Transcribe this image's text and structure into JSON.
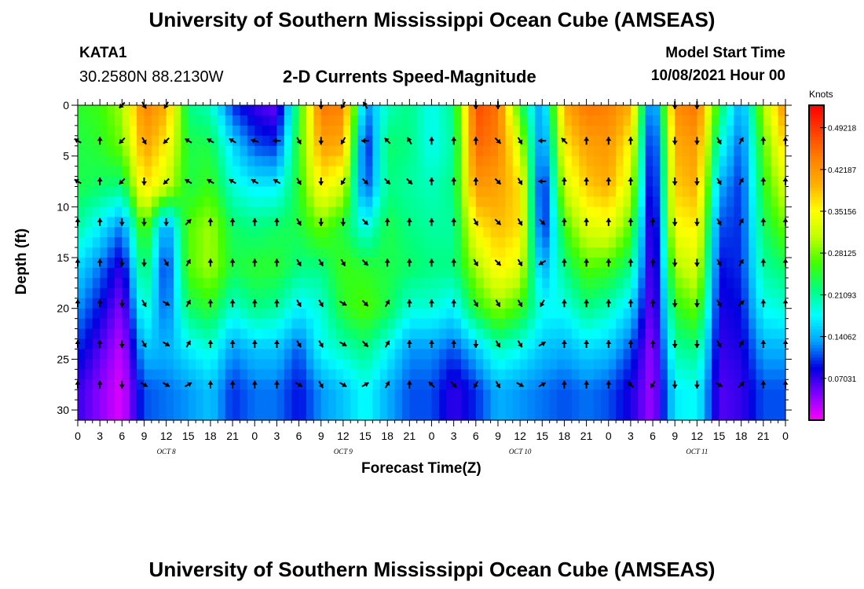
{
  "header": {
    "title_top": "University of Southern Mississippi Ocean Cube (AMSEAS)",
    "title_bottom": "University of Southern Mississippi Ocean Cube (AMSEAS)",
    "station": "KATA1",
    "coords": "30.2580N  88.2130W",
    "subtitle": "2-D Currents Speed-Magnitude",
    "model_label": "Model Start Time",
    "model_time": "10/08/2021 Hour 00"
  },
  "chart_data": {
    "type": "heatmap",
    "title": "2-D Currents Speed-Magnitude",
    "xlabel": "Forecast Time(Z)",
    "ylabel": "Depth (ft)",
    "xlim": [
      0,
      96
    ],
    "ylim": [
      31,
      0
    ],
    "x_tick_labels": [
      "0",
      "3",
      "6",
      "9",
      "12",
      "15",
      "18",
      "21",
      "0",
      "3",
      "6",
      "9",
      "12",
      "15",
      "18",
      "21",
      "0",
      "3",
      "6",
      "9",
      "12",
      "15",
      "18",
      "21",
      "0",
      "3",
      "6",
      "9",
      "12",
      "15",
      "18",
      "21",
      "0"
    ],
    "y_ticks": [
      0,
      5,
      10,
      15,
      20,
      25,
      30
    ],
    "day_labels": [
      {
        "label": "OCT 8",
        "hour": 12
      },
      {
        "label": "OCT 9",
        "hour": 36
      },
      {
        "label": "OCT 10",
        "hour": 60
      },
      {
        "label": "OCT 11",
        "hour": 84
      }
    ],
    "colorbar": {
      "units": "Knots",
      "min": 0.0,
      "max": 0.53,
      "tick_values": [
        0.07031,
        0.14062,
        0.21093,
        0.28125,
        0.35156,
        0.42187,
        0.49218
      ],
      "tick_labels": [
        "0.07031",
        "0.14062",
        "0.21093",
        "0.28125",
        "0.35156",
        "0.42187",
        "0.49218"
      ],
      "colors": [
        "#ff00ff",
        "#8000ff",
        "#0000e0",
        "#00a0ff",
        "#00ffff",
        "#00ff80",
        "#40ff00",
        "#c0ff00",
        "#ffff00",
        "#ffb000",
        "#ff8000",
        "#ff4000",
        "#ff0000"
      ]
    },
    "speed_profiles": [
      {
        "hour": 0,
        "values": [
          0.25,
          0.24,
          0.24,
          0.21,
          0.16,
          0.13,
          0.1,
          0.07
        ]
      },
      {
        "hour": 3,
        "values": [
          0.26,
          0.25,
          0.23,
          0.17,
          0.12,
          0.09,
          0.06,
          0.04
        ]
      },
      {
        "hour": 6,
        "values": [
          0.3,
          0.28,
          0.22,
          0.12,
          0.07,
          0.04,
          0.02,
          0.01
        ]
      },
      {
        "hour": 9,
        "values": [
          0.44,
          0.41,
          0.37,
          0.28,
          0.24,
          0.2,
          0.15,
          0.11
        ]
      },
      {
        "hour": 12,
        "values": [
          0.4,
          0.36,
          0.32,
          0.12,
          0.09,
          0.11,
          0.14,
          0.12
        ]
      },
      {
        "hour": 15,
        "values": [
          0.22,
          0.24,
          0.24,
          0.27,
          0.27,
          0.23,
          0.17,
          0.13
        ]
      },
      {
        "hour": 18,
        "values": [
          0.2,
          0.24,
          0.26,
          0.3,
          0.3,
          0.25,
          0.19,
          0.15
        ]
      },
      {
        "hour": 21,
        "values": [
          0.1,
          0.16,
          0.19,
          0.23,
          0.24,
          0.19,
          0.13,
          0.1
        ]
      },
      {
        "hour": 24,
        "values": [
          0.07,
          0.11,
          0.17,
          0.22,
          0.25,
          0.22,
          0.15,
          0.12
        ]
      },
      {
        "hour": 27,
        "values": [
          0.05,
          0.1,
          0.17,
          0.23,
          0.25,
          0.21,
          0.15,
          0.12
        ]
      },
      {
        "hour": 30,
        "values": [
          0.25,
          0.26,
          0.25,
          0.24,
          0.22,
          0.17,
          0.11,
          0.09
        ]
      },
      {
        "hour": 33,
        "values": [
          0.45,
          0.41,
          0.36,
          0.28,
          0.22,
          0.19,
          0.18,
          0.13
        ]
      },
      {
        "hour": 36,
        "values": [
          0.44,
          0.4,
          0.32,
          0.24,
          0.26,
          0.25,
          0.2,
          0.15
        ]
      },
      {
        "hour": 39,
        "values": [
          0.12,
          0.08,
          0.1,
          0.18,
          0.25,
          0.27,
          0.22,
          0.18
        ]
      },
      {
        "hour": 42,
        "values": [
          0.2,
          0.23,
          0.22,
          0.24,
          0.24,
          0.24,
          0.18,
          0.14
        ]
      },
      {
        "hour": 45,
        "values": [
          0.22,
          0.22,
          0.21,
          0.22,
          0.23,
          0.19,
          0.13,
          0.11
        ]
      },
      {
        "hour": 48,
        "values": [
          0.18,
          0.18,
          0.2,
          0.21,
          0.22,
          0.19,
          0.13,
          0.11
        ]
      },
      {
        "hour": 51,
        "values": [
          0.22,
          0.21,
          0.22,
          0.21,
          0.22,
          0.17,
          0.11,
          0.07
        ]
      },
      {
        "hour": 54,
        "values": [
          0.48,
          0.46,
          0.42,
          0.36,
          0.3,
          0.25,
          0.15,
          0.1
        ]
      },
      {
        "hour": 57,
        "values": [
          0.45,
          0.44,
          0.41,
          0.39,
          0.36,
          0.29,
          0.2,
          0.14
        ]
      },
      {
        "hour": 60,
        "values": [
          0.25,
          0.32,
          0.37,
          0.37,
          0.33,
          0.26,
          0.18,
          0.13
        ]
      },
      {
        "hour": 63,
        "values": [
          0.12,
          0.1,
          0.07,
          0.08,
          0.13,
          0.18,
          0.15,
          0.12
        ]
      },
      {
        "hour": 66,
        "values": [
          0.4,
          0.36,
          0.32,
          0.26,
          0.22,
          0.18,
          0.14,
          0.11
        ]
      },
      {
        "hour": 69,
        "values": [
          0.45,
          0.41,
          0.38,
          0.33,
          0.27,
          0.22,
          0.16,
          0.12
        ]
      },
      {
        "hour": 72,
        "values": [
          0.44,
          0.42,
          0.4,
          0.34,
          0.26,
          0.2,
          0.15,
          0.11
        ]
      },
      {
        "hour": 75,
        "values": [
          0.4,
          0.35,
          0.32,
          0.27,
          0.22,
          0.16,
          0.11,
          0.08
        ]
      },
      {
        "hour": 78,
        "values": [
          0.08,
          0.06,
          0.05,
          0.04,
          0.04,
          0.04,
          0.03,
          0.03
        ]
      },
      {
        "hour": 81,
        "values": [
          0.43,
          0.4,
          0.38,
          0.35,
          0.3,
          0.25,
          0.21,
          0.17
        ]
      },
      {
        "hour": 84,
        "values": [
          0.45,
          0.42,
          0.4,
          0.36,
          0.33,
          0.28,
          0.22,
          0.18
        ]
      },
      {
        "hour": 87,
        "values": [
          0.24,
          0.19,
          0.14,
          0.11,
          0.09,
          0.08,
          0.07,
          0.06
        ]
      },
      {
        "hour": 90,
        "values": [
          0.13,
          0.11,
          0.1,
          0.1,
          0.1,
          0.09,
          0.08,
          0.07
        ]
      },
      {
        "hour": 93,
        "values": [
          0.3,
          0.27,
          0.25,
          0.23,
          0.21,
          0.18,
          0.14,
          0.11
        ]
      },
      {
        "hour": 96,
        "values": [
          0.43,
          0.38,
          0.33,
          0.28,
          0.23,
          0.19,
          0.14,
          0.11
        ]
      }
    ],
    "profile_depths": [
      0,
      4,
      8,
      12,
      16,
      20,
      24,
      28
    ],
    "vector_depths": [
      0,
      3.5,
      7.5,
      11.5,
      15.5,
      19.5,
      23.5,
      27.5
    ],
    "vector_directions": [
      {
        "hour": 0,
        "dirs": [
          null,
          300,
          300,
          0,
          0,
          0,
          0,
          0
        ]
      },
      {
        "hour": 3,
        "dirs": [
          null,
          0,
          0,
          0,
          0,
          0,
          0,
          0
        ]
      },
      {
        "hour": 6,
        "dirs": [
          225,
          225,
          225,
          180,
          180,
          180,
          180,
          180
        ]
      },
      {
        "hour": 9,
        "dirs": [
          150,
          150,
          180,
          180,
          180,
          150,
          150,
          120
        ]
      },
      {
        "hour": 12,
        "dirs": [
          210,
          225,
          225,
          180,
          150,
          120,
          120,
          120
        ]
      },
      {
        "hour": 15,
        "dirs": [
          null,
          300,
          300,
          45,
          30,
          30,
          30,
          60
        ]
      },
      {
        "hour": 18,
        "dirs": [
          null,
          300,
          300,
          0,
          0,
          0,
          0,
          0
        ]
      },
      {
        "hour": 21,
        "dirs": [
          null,
          300,
          300,
          0,
          0,
          0,
          0,
          0
        ]
      },
      {
        "hour": 24,
        "dirs": [
          null,
          285,
          300,
          0,
          0,
          0,
          0,
          0
        ]
      },
      {
        "hour": 27,
        "dirs": [
          null,
          270,
          300,
          0,
          0,
          0,
          0,
          0
        ]
      },
      {
        "hour": 30,
        "dirs": [
          null,
          150,
          150,
          150,
          150,
          150,
          150,
          120
        ]
      },
      {
        "hour": 33,
        "dirs": [
          180,
          180,
          180,
          180,
          150,
          150,
          150,
          150
        ]
      },
      {
        "hour": 36,
        "dirs": [
          210,
          210,
          210,
          180,
          150,
          120,
          120,
          120
        ]
      },
      {
        "hour": 39,
        "dirs": [
          330,
          270,
          135,
          135,
          135,
          135,
          135,
          60
        ]
      },
      {
        "hour": 42,
        "dirs": [
          null,
          315,
          135,
          0,
          0,
          30,
          30,
          30
        ]
      },
      {
        "hour": 45,
        "dirs": [
          null,
          330,
          135,
          0,
          0,
          0,
          0,
          0
        ]
      },
      {
        "hour": 48,
        "dirs": [
          null,
          0,
          0,
          0,
          0,
          0,
          0,
          315
        ]
      },
      {
        "hour": 51,
        "dirs": [
          null,
          0,
          0,
          0,
          0,
          0,
          0,
          135
        ]
      },
      {
        "hour": 54,
        "dirs": [
          180,
          0,
          0,
          150,
          150,
          150,
          180,
          210
        ]
      },
      {
        "hour": 57,
        "dirs": [
          180,
          135,
          135,
          135,
          135,
          150,
          150,
          150
        ]
      },
      {
        "hour": 60,
        "dirs": [
          null,
          150,
          150,
          150,
          150,
          150,
          150,
          120
        ]
      },
      {
        "hour": 63,
        "dirs": [
          null,
          270,
          270,
          135,
          240,
          210,
          60,
          60
        ]
      },
      {
        "hour": 66,
        "dirs": [
          null,
          315,
          0,
          0,
          0,
          0,
          0,
          0
        ]
      },
      {
        "hour": 69,
        "dirs": [
          null,
          0,
          0,
          0,
          0,
          0,
          0,
          0
        ]
      },
      {
        "hour": 72,
        "dirs": [
          null,
          0,
          0,
          0,
          0,
          0,
          0,
          0
        ]
      },
      {
        "hour": 75,
        "dirs": [
          null,
          0,
          0,
          0,
          0,
          0,
          0,
          315
        ]
      },
      {
        "hour": 78,
        "dirs": [
          null,
          null,
          null,
          0,
          0,
          0,
          0,
          210
        ]
      },
      {
        "hour": 81,
        "dirs": [
          180,
          180,
          180,
          180,
          180,
          180,
          180,
          180
        ]
      },
      {
        "hour": 84,
        "dirs": [
          180,
          180,
          180,
          180,
          180,
          180,
          180,
          180
        ]
      },
      {
        "hour": 87,
        "dirs": [
          null,
          150,
          150,
          150,
          150,
          150,
          150,
          120
        ]
      },
      {
        "hour": 90,
        "dirs": [
          null,
          30,
          30,
          30,
          30,
          45,
          30,
          45
        ]
      },
      {
        "hour": 93,
        "dirs": [
          null,
          0,
          0,
          0,
          0,
          0,
          0,
          0
        ]
      },
      {
        "hour": 96,
        "dirs": [
          null,
          0,
          0,
          0,
          0,
          0,
          0,
          0
        ]
      }
    ]
  }
}
